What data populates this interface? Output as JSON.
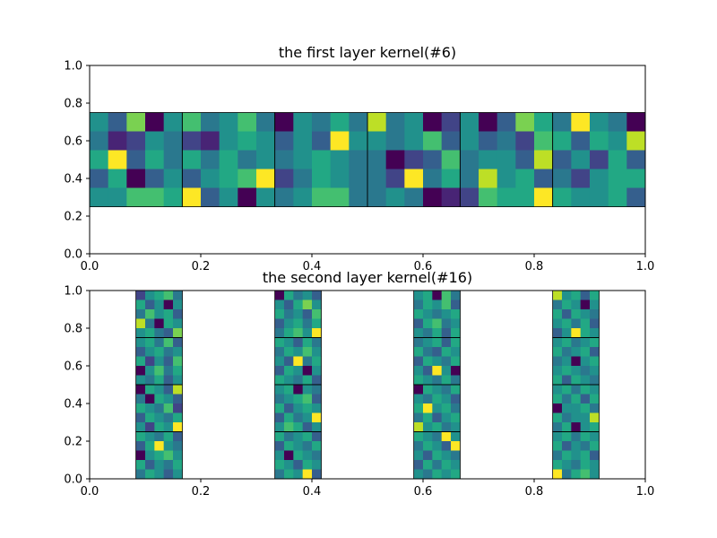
{
  "colormap": [
    "#440154",
    "#482475",
    "#414487",
    "#355f8d",
    "#2a788e",
    "#21918c",
    "#22a884",
    "#44bf70",
    "#7ad151",
    "#bddf26",
    "#fde725"
  ],
  "chart_data": [
    {
      "type": "heatmap",
      "title": "the first layer kernel(#6)",
      "xlim": [
        0,
        1
      ],
      "ylim": [
        0,
        1
      ],
      "xticks": [
        "0.0",
        "0.2",
        "0.4",
        "0.6",
        "0.8",
        "1.0"
      ],
      "yticks": [
        "0.0",
        "0.2",
        "0.4",
        "0.6",
        "0.8",
        "1.0"
      ],
      "kernel_size": 5,
      "kernels": [
        {
          "extent": [
            0.0,
            0.1667,
            0.25,
            0.75
          ],
          "values": [
            [
              0.5,
              0.3,
              0.8,
              0.0,
              0.5
            ],
            [
              0.4,
              0.1,
              0.2,
              0.5,
              0.4
            ],
            [
              0.6,
              1.0,
              0.3,
              0.6,
              0.4
            ],
            [
              0.3,
              0.6,
              0.0,
              0.3,
              0.5
            ],
            [
              0.5,
              0.5,
              0.7,
              0.7,
              0.6
            ]
          ]
        },
        {
          "extent": [
            0.1667,
            0.3333,
            0.25,
            0.75
          ],
          "values": [
            [
              0.7,
              0.4,
              0.5,
              0.7,
              0.4
            ],
            [
              0.2,
              0.1,
              0.5,
              0.6,
              0.5
            ],
            [
              0.6,
              0.4,
              0.6,
              0.4,
              0.5
            ],
            [
              0.3,
              0.5,
              0.6,
              0.7,
              1.0
            ],
            [
              1.0,
              0.3,
              0.5,
              0.0,
              0.5
            ]
          ]
        },
        {
          "extent": [
            0.3333,
            0.5,
            0.25,
            0.75
          ],
          "values": [
            [
              0.0,
              0.5,
              0.4,
              0.6,
              0.4
            ],
            [
              0.3,
              0.5,
              0.3,
              1.0,
              0.5
            ],
            [
              0.4,
              0.5,
              0.6,
              0.5,
              0.4
            ],
            [
              0.2,
              0.4,
              0.6,
              0.5,
              0.4
            ],
            [
              0.4,
              0.5,
              0.7,
              0.7,
              0.4
            ]
          ]
        },
        {
          "extent": [
            0.5,
            0.6667,
            0.25,
            0.75
          ],
          "values": [
            [
              0.9,
              0.4,
              0.5,
              0.0,
              0.2
            ],
            [
              0.5,
              0.4,
              0.5,
              0.7,
              0.3
            ],
            [
              0.4,
              0.0,
              0.2,
              0.3,
              0.7
            ],
            [
              0.4,
              0.2,
              1.0,
              0.4,
              0.6
            ],
            [
              0.4,
              0.5,
              0.4,
              0.0,
              0.1
            ]
          ]
        },
        {
          "extent": [
            0.6667,
            0.8333,
            0.25,
            0.75
          ],
          "values": [
            [
              0.5,
              0.0,
              0.3,
              0.8,
              0.6
            ],
            [
              0.5,
              0.3,
              0.4,
              0.2,
              0.7
            ],
            [
              0.4,
              0.5,
              0.5,
              0.3,
              0.9
            ],
            [
              0.4,
              0.9,
              0.5,
              0.6,
              0.3
            ],
            [
              0.2,
              0.7,
              0.6,
              0.6,
              1.0
            ]
          ]
        },
        {
          "extent": [
            0.8333,
            1.0,
            0.25,
            0.75
          ],
          "values": [
            [
              0.4,
              1.0,
              0.5,
              0.4,
              0.0
            ],
            [
              0.6,
              0.3,
              0.6,
              0.5,
              0.9
            ],
            [
              0.3,
              0.5,
              0.2,
              0.6,
              0.3
            ],
            [
              0.4,
              0.2,
              0.5,
              0.6,
              0.6
            ],
            [
              0.6,
              0.5,
              0.5,
              0.6,
              0.3
            ]
          ]
        }
      ]
    },
    {
      "type": "heatmap",
      "title": "the second layer kernel(#16)",
      "xlim": [
        0,
        1
      ],
      "ylim": [
        0,
        1
      ],
      "xticks": [
        "0.0",
        "0.2",
        "0.4",
        "0.6",
        "0.8",
        "1.0"
      ],
      "yticks": [
        "0.0",
        "0.2",
        "0.4",
        "0.6",
        "0.8",
        "1.0"
      ],
      "kernel_size": 5,
      "kernels": [
        {
          "extent": [
            0.0833,
            0.1667,
            0.75,
            1.0
          ],
          "values": [
            [
              0.2,
              0.5,
              0.6,
              0.7,
              0.4
            ],
            [
              0.6,
              0.3,
              0.5,
              0.0,
              0.5
            ],
            [
              0.4,
              0.7,
              0.5,
              0.6,
              0.3
            ],
            [
              0.9,
              0.4,
              0.0,
              0.6,
              0.5
            ],
            [
              0.5,
              0.6,
              0.4,
              0.3,
              0.8
            ]
          ]
        },
        {
          "extent": [
            0.0833,
            0.1667,
            0.5,
            0.75
          ],
          "values": [
            [
              0.5,
              0.6,
              0.4,
              0.7,
              0.3
            ],
            [
              0.3,
              0.5,
              0.6,
              0.4,
              0.5
            ],
            [
              0.6,
              0.2,
              0.5,
              0.3,
              0.7
            ],
            [
              0.0,
              0.5,
              0.7,
              0.4,
              0.6
            ],
            [
              0.5,
              0.4,
              0.6,
              0.3,
              0.5
            ]
          ]
        },
        {
          "extent": [
            0.0833,
            0.1667,
            0.25,
            0.5
          ],
          "values": [
            [
              0.0,
              0.6,
              0.5,
              0.3,
              0.9
            ],
            [
              0.4,
              0.0,
              0.6,
              0.5,
              0.3
            ],
            [
              0.6,
              0.5,
              0.4,
              0.7,
              0.2
            ],
            [
              0.3,
              0.6,
              0.5,
              0.4,
              0.6
            ],
            [
              0.5,
              0.2,
              0.6,
              0.5,
              1.0
            ]
          ]
        },
        {
          "extent": [
            0.0833,
            0.1667,
            0.0,
            0.25
          ],
          "values": [
            [
              0.6,
              0.5,
              0.4,
              0.6,
              0.3
            ],
            [
              0.3,
              0.6,
              1.0,
              0.5,
              0.4
            ],
            [
              0.0,
              0.5,
              0.6,
              0.7,
              0.5
            ],
            [
              0.6,
              0.3,
              0.5,
              0.4,
              0.6
            ],
            [
              0.4,
              0.6,
              0.5,
              0.3,
              0.5
            ]
          ]
        },
        {
          "extent": [
            0.3333,
            0.4167,
            0.75,
            1.0
          ],
          "values": [
            [
              0.0,
              0.6,
              0.4,
              0.5,
              0.3
            ],
            [
              0.5,
              0.3,
              0.6,
              0.8,
              0.5
            ],
            [
              0.6,
              0.4,
              0.5,
              0.3,
              0.7
            ],
            [
              0.3,
              0.5,
              0.6,
              0.4,
              0.6
            ],
            [
              0.4,
              0.6,
              0.7,
              0.5,
              1.0
            ]
          ]
        },
        {
          "extent": [
            0.3333,
            0.4167,
            0.5,
            0.75
          ],
          "values": [
            [
              0.6,
              0.5,
              0.3,
              0.6,
              0.4
            ],
            [
              0.4,
              0.6,
              0.5,
              0.7,
              0.5
            ],
            [
              0.5,
              0.3,
              1.0,
              0.4,
              0.6
            ],
            [
              0.3,
              0.6,
              0.5,
              0.0,
              0.5
            ],
            [
              0.6,
              0.5,
              0.4,
              0.6,
              0.3
            ]
          ]
        },
        {
          "extent": [
            0.3333,
            0.4167,
            0.25,
            0.5
          ],
          "values": [
            [
              0.5,
              0.6,
              0.0,
              0.5,
              0.4
            ],
            [
              0.4,
              0.5,
              0.6,
              0.7,
              0.3
            ],
            [
              0.6,
              0.3,
              0.5,
              0.6,
              0.5
            ],
            [
              0.3,
              0.6,
              0.4,
              0.5,
              1.0
            ],
            [
              0.5,
              0.7,
              0.6,
              0.3,
              0.5
            ]
          ]
        },
        {
          "extent": [
            0.3333,
            0.4167,
            0.0,
            0.25
          ],
          "values": [
            [
              0.6,
              0.4,
              0.5,
              0.6,
              0.3
            ],
            [
              0.3,
              0.6,
              0.5,
              0.4,
              0.6
            ],
            [
              0.5,
              0.0,
              0.6,
              0.5,
              0.4
            ],
            [
              0.6,
              0.5,
              0.3,
              0.6,
              0.5
            ],
            [
              0.4,
              0.6,
              0.5,
              1.0,
              0.3
            ]
          ]
        },
        {
          "extent": [
            0.5833,
            0.6667,
            0.75,
            1.0
          ],
          "values": [
            [
              0.5,
              0.6,
              0.0,
              0.7,
              0.4
            ],
            [
              0.4,
              0.6,
              0.5,
              0.7,
              0.3
            ],
            [
              0.6,
              0.5,
              0.4,
              0.5,
              0.6
            ],
            [
              0.3,
              0.6,
              0.7,
              0.4,
              0.5
            ],
            [
              0.5,
              0.4,
              0.6,
              0.3,
              0.6
            ]
          ]
        },
        {
          "extent": [
            0.5833,
            0.6667,
            0.5,
            0.75
          ],
          "values": [
            [
              0.4,
              0.5,
              0.6,
              0.3,
              0.6
            ],
            [
              0.6,
              0.4,
              0.3,
              0.6,
              0.5
            ],
            [
              0.3,
              0.6,
              0.5,
              0.4,
              0.6
            ],
            [
              0.5,
              0.3,
              1.0,
              0.5,
              0.0
            ],
            [
              0.6,
              0.5,
              0.4,
              0.6,
              0.4
            ]
          ]
        },
        {
          "extent": [
            0.5833,
            0.6667,
            0.25,
            0.5
          ],
          "values": [
            [
              0.0,
              0.6,
              0.5,
              0.4,
              0.6
            ],
            [
              0.5,
              0.4,
              0.6,
              0.5,
              0.3
            ],
            [
              0.6,
              1.0,
              0.5,
              0.6,
              0.4
            ],
            [
              0.4,
              0.6,
              0.3,
              0.5,
              0.6
            ],
            [
              0.9,
              0.5,
              0.6,
              0.4,
              0.5
            ]
          ]
        },
        {
          "extent": [
            0.5833,
            0.6667,
            0.0,
            0.25
          ],
          "values": [
            [
              0.6,
              0.5,
              0.4,
              1.0,
              0.5
            ],
            [
              0.4,
              0.6,
              0.5,
              0.3,
              1.0
            ],
            [
              0.5,
              0.3,
              0.6,
              0.5,
              0.4
            ],
            [
              0.3,
              0.6,
              0.4,
              0.6,
              0.5
            ],
            [
              0.5,
              0.4,
              0.6,
              0.5,
              0.6
            ]
          ]
        },
        {
          "extent": [
            0.8333,
            0.9167,
            0.75,
            1.0
          ],
          "values": [
            [
              0.9,
              0.5,
              0.6,
              0.3,
              0.6
            ],
            [
              0.4,
              0.6,
              0.5,
              0.0,
              0.5
            ],
            [
              0.6,
              0.3,
              0.6,
              0.5,
              0.4
            ],
            [
              0.5,
              0.6,
              0.4,
              0.6,
              0.3
            ],
            [
              0.3,
              0.5,
              1.0,
              0.6,
              0.5
            ]
          ]
        },
        {
          "extent": [
            0.8333,
            0.9167,
            0.5,
            0.75
          ],
          "values": [
            [
              0.5,
              0.6,
              0.4,
              0.5,
              0.6
            ],
            [
              0.6,
              0.4,
              0.5,
              0.6,
              0.3
            ],
            [
              0.4,
              0.5,
              0.0,
              0.5,
              0.6
            ],
            [
              0.5,
              0.6,
              0.5,
              0.4,
              0.5
            ],
            [
              0.6,
              0.3,
              0.6,
              0.5,
              0.4
            ]
          ]
        },
        {
          "extent": [
            0.8333,
            0.9167,
            0.25,
            0.5
          ],
          "values": [
            [
              0.5,
              0.6,
              0.4,
              0.6,
              0.5
            ],
            [
              0.6,
              0.4,
              0.6,
              0.3,
              0.6
            ],
            [
              0.0,
              0.5,
              0.5,
              0.6,
              0.4
            ],
            [
              0.6,
              0.4,
              0.5,
              0.5,
              0.9
            ],
            [
              0.4,
              0.6,
              0.0,
              0.5,
              0.6
            ]
          ]
        },
        {
          "extent": [
            0.8333,
            0.9167,
            0.0,
            0.25
          ],
          "values": [
            [
              0.5,
              0.6,
              0.4,
              0.6,
              0.5
            ],
            [
              0.6,
              0.3,
              0.5,
              0.4,
              0.6
            ],
            [
              0.4,
              0.6,
              0.5,
              0.6,
              0.3
            ],
            [
              0.6,
              0.5,
              0.4,
              0.6,
              0.5
            ],
            [
              1.0,
              0.4,
              0.6,
              0.7,
              0.5
            ]
          ]
        }
      ]
    }
  ]
}
